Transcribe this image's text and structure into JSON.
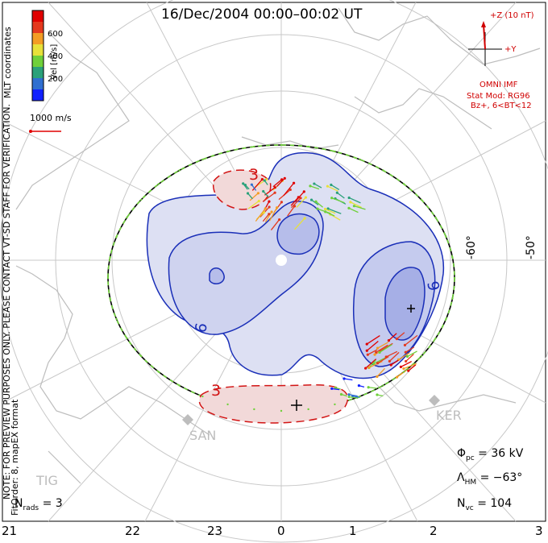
{
  "title": "16/Dec/2004 00:00–00:02 UT",
  "coords_label": "MLT coordinates",
  "colorbar": {
    "label": "Vel [m/s]",
    "ticks": [
      "600",
      "400",
      "200"
    ],
    "colors": [
      "#1020ff",
      "#2f6fd0",
      "#2aa17a",
      "#6fd03a",
      "#e7e13a",
      "#f39c24",
      "#e4391e",
      "#e00000"
    ]
  },
  "scale_vector": "1000 m/s",
  "imf": {
    "z_label": "+Z (10 nT)",
    "y_label": "+Y",
    "source": "OMNI IMF",
    "model": "Stat Mod: RG96",
    "condition": "Bz+, 6<BT<12"
  },
  "latitude_labels": [
    "-60°",
    "-50°"
  ],
  "contour_labels": [
    "3",
    "9",
    "6",
    "3"
  ],
  "stations": [
    "KER",
    "SAN",
    "TIG"
  ],
  "notes": {
    "line1": "NOTE: FOR PREVIEW PURPOSES ONLY. PLEASE CONTACT VT-SD STAFF FOR VERIFICATION.",
    "line2": "FitOrder: 8, mapEX format"
  },
  "stats": {
    "phi_pc_sym": "Φ",
    "phi_pc_sub": "pc",
    "phi_pc_val": "= 36 kV",
    "lambda_sym": "Λ",
    "lambda_sub": "HM",
    "lambda_val": "= −63°",
    "nvc_sym": "N",
    "nvc_sub": "vc",
    "nvc_val": "= 104",
    "nrads_sym": "N",
    "nrads_sub": "rads",
    "nrads_val": "= 3"
  },
  "mlt_ticks": [
    "21",
    "22",
    "23",
    "0",
    "1",
    "2",
    "3"
  ]
}
